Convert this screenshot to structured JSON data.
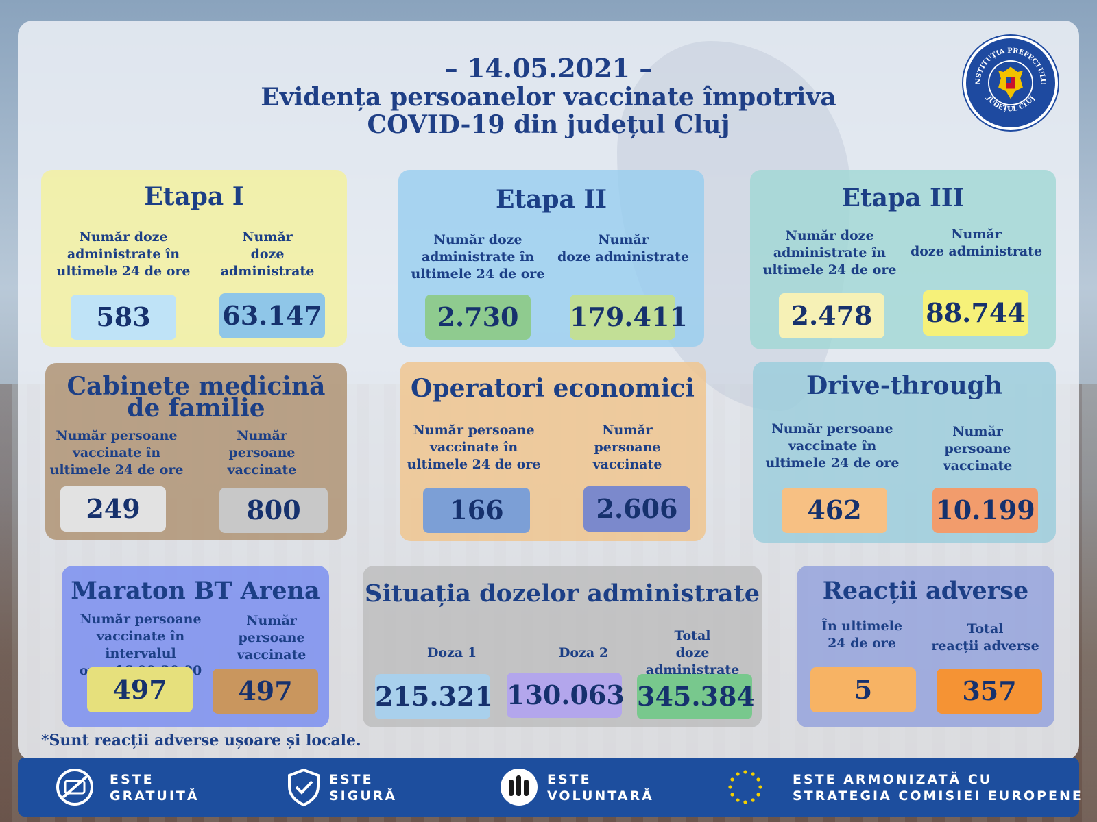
{
  "header": {
    "date": "– 14.05.2021 –",
    "title_line1": "Evidența persoanelor vaccinate împotriva",
    "title_line2": "COVID-19 din județul Cluj"
  },
  "logo": {
    "text_top": "INSTITUȚIA PREFECTULUI",
    "text_bottom": "JUDEȚUL CLUJ"
  },
  "etapa1": {
    "title": "Etapa I",
    "label_24h": [
      "Număr doze",
      "administrate în",
      "ultimele 24 de ore"
    ],
    "label_total": [
      "Număr",
      "doze administrate"
    ],
    "value_24h": "583",
    "value_total": "63.147"
  },
  "etapa2": {
    "title": "Etapa II",
    "label_24h": [
      "Număr doze",
      "administrate în",
      "ultimele 24 de ore"
    ],
    "label_total": [
      "Număr",
      "doze administrate"
    ],
    "value_24h": "2.730",
    "value_total": "179.411"
  },
  "etapa3": {
    "title": "Etapa III",
    "label_24h": [
      "Număr doze",
      "administrate în",
      "ultimele 24 de ore"
    ],
    "label_total": [
      "Număr",
      "doze administrate"
    ],
    "value_24h": "2.478",
    "value_total": "88.744"
  },
  "cabinete": {
    "title_line1": "Cabinete medicină",
    "title_line2": "de familie",
    "label_24h": [
      "Număr persoane",
      "vaccinate în",
      "ultimele 24 de ore"
    ],
    "label_total": [
      "Număr",
      "persoane vaccinate"
    ],
    "value_24h": "249",
    "value_total": "800"
  },
  "operatori": {
    "title": "Operatori economici",
    "label_24h": [
      "Număr persoane",
      "vaccinate în",
      "ultimele 24 de ore"
    ],
    "label_total": [
      "Număr",
      "persoane vaccinate"
    ],
    "value_24h": "166",
    "value_total": "2.606"
  },
  "drive": {
    "title": "Drive-through",
    "label_24h": [
      "Număr persoane",
      "vaccinate în",
      "ultimele 24 de ore"
    ],
    "label_total": [
      "Număr",
      "persoane vaccinate"
    ],
    "value_24h": "462",
    "value_total": "10.199"
  },
  "maraton": {
    "title": "Maraton BT Arena",
    "label_interval": [
      "Număr persoane",
      "vaccinate în intervalul",
      "orar 16.00-20.00"
    ],
    "label_total": [
      "Număr",
      "persoane",
      "vaccinate"
    ],
    "value_interval": "497",
    "value_total": "497"
  },
  "situatia": {
    "title": "Situația dozelor administrate",
    "label_doza1": "Doza 1",
    "label_doza2": "Doza 2",
    "label_total": [
      "Total",
      "doze administrate"
    ],
    "value_doza1": "215.321",
    "value_doza2": "130.063",
    "value_total": "345.384"
  },
  "reactii": {
    "title": "Reacții adverse",
    "label_24h": [
      "În ultimele",
      "24 de ore"
    ],
    "label_total": [
      "Total",
      "reacții adverse"
    ],
    "value_24h": "5",
    "value_total": "357"
  },
  "footnote": "*Sunt reacții adverse ușoare și locale.",
  "footer": {
    "items": [
      {
        "line1": "ESTE",
        "line2": "GRATUITĂ",
        "icon": "free-icon"
      },
      {
        "line1": "ESTE",
        "line2": "SIGURĂ",
        "icon": "shield-check-icon"
      },
      {
        "line1": "ESTE",
        "line2": "VOLUNTARĂ",
        "icon": "raised-hands-icon"
      },
      {
        "line1": "ESTE ARMONIZATĂ CU",
        "line2": "STRATEGIA COMISIEI EUROPENE",
        "icon": "eu-stars-icon"
      }
    ]
  },
  "colors": {
    "title_blue": "#1c3f86",
    "footer_blue": "#1d4e9e",
    "etapa1_bg": "#f6f1a8",
    "etapa2_bg": "#a7d2ef",
    "etapa3_bg": "#a9dcd8",
    "cabinete_bg": "#b79a7d",
    "operatori_bg": "#f2c994",
    "drive_bg": "#a6d3e0",
    "maraton_bg": "#7f93f0",
    "situatia_bg": "#bcbcbc",
    "reactii_bg": "#9ea9dc"
  }
}
